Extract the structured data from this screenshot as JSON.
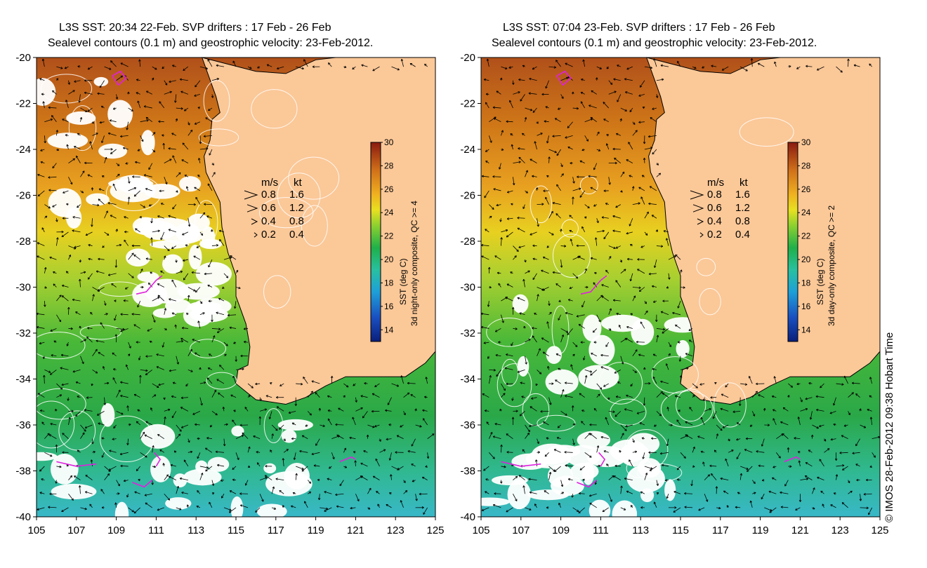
{
  "panels": [
    {
      "title_line1": "L3S SST: 20:34 22-Feb. SVP drifters : 17 Feb - 26 Feb",
      "title_line2": "Sealevel contours (0.1 m) and geostrophic velocity: 23-Feb-2012.",
      "colorbar_label": "SST (deg C)",
      "colorbar_sublabel": "3d night-only composite, QC >= 4"
    },
    {
      "title_line1": "L3S SST: 07:04 23-Feb. SVP drifters : 17 Feb - 26 Feb",
      "title_line2": "Sealevel contours (0.1 m) and geostrophic velocity: 23-Feb-2012.",
      "colorbar_label": "SST (deg C)",
      "colorbar_sublabel": "3d day-only composite, QC >= 2"
    }
  ],
  "axes": {
    "lon_ticks": [
      "105",
      "107",
      "109",
      "111",
      "113",
      "115",
      "117",
      "119",
      "121",
      "123",
      "125"
    ],
    "lat_ticks": [
      "-20",
      "-22",
      "-24",
      "-26",
      "-28",
      "-30",
      "-32",
      "-34",
      "-36",
      "-38",
      "-40"
    ],
    "lon_range": [
      105,
      125
    ],
    "lat_range": [
      -40,
      -20
    ]
  },
  "colorbar": {
    "ticks": [
      "14",
      "16",
      "18",
      "20",
      "22",
      "24",
      "26",
      "28",
      "30"
    ],
    "range": [
      13,
      30
    ]
  },
  "velocity_legend": {
    "header_ms": "m/s",
    "header_kt": "kt",
    "rows": [
      {
        "ms": "0.8",
        "kt": "1.6"
      },
      {
        "ms": "0.6",
        "kt": "1.2"
      },
      {
        "ms": "0.4",
        "kt": "0.8"
      },
      {
        "ms": "0.2",
        "kt": "0.4"
      }
    ]
  },
  "credit": "© IMOS 28-Feb-2012 09:38 Hobart Time",
  "colors": {
    "land": "#fbc898",
    "coast": "#000000",
    "contour": "#ffffff",
    "drifter": "#e020e0"
  }
}
